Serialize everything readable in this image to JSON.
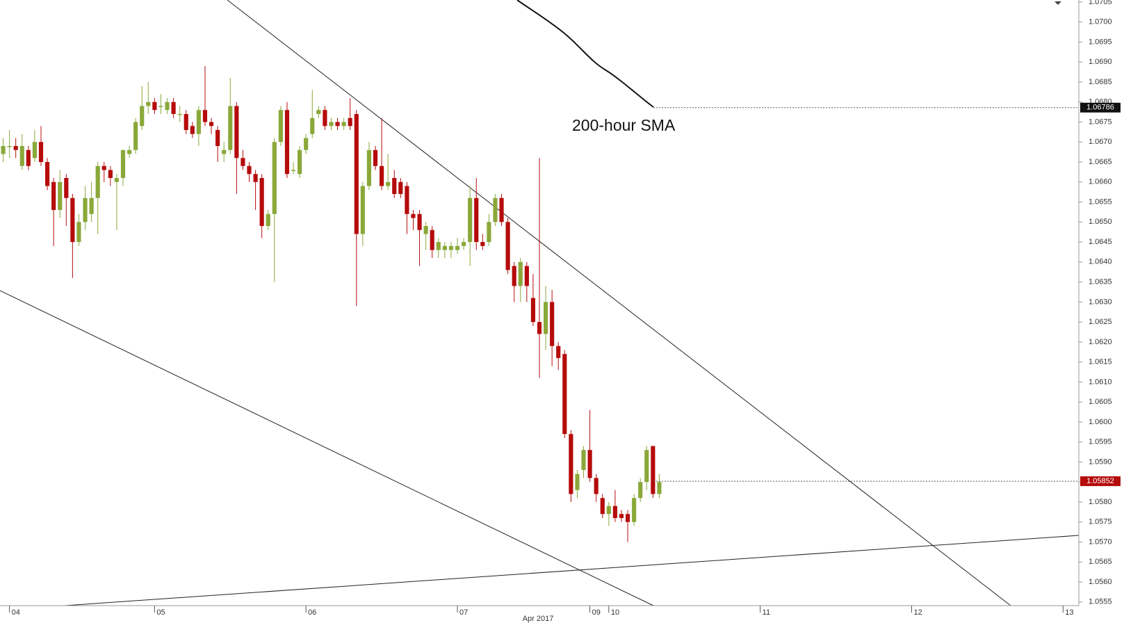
{
  "chart_data": {
    "type": "candlestick",
    "annotations": [
      {
        "text": "200-hour SMA",
        "value": 1.06786
      }
    ],
    "last_price": 1.05852,
    "x_label": "Apr 2017",
    "up_color": "#8aa83a",
    "down_color": "#b50b0b",
    "open": [
      1.0667,
      1.0669,
      1.0669,
      1.0664,
      1.0668,
      1.0666,
      1.067,
      1.0665,
      1.066,
      1.0653,
      1.0661,
      1.0656,
      1.0645,
      1.065,
      1.0652,
      1.0656,
      1.0664,
      1.0663,
      1.066,
      1.0661,
      1.0667,
      1.0668,
      1.0674,
      1.0679,
      1.068,
      1.0679,
      1.0678,
      1.068,
      1.0677,
      1.0677,
      1.0674,
      1.0672,
      1.0678,
      1.0675,
      1.0673,
      1.0667,
      1.0668,
      1.0679,
      1.0666,
      1.0664,
      1.0662,
      1.0661,
      1.0649,
      1.0652,
      1.067,
      1.0678,
      1.0663,
      1.0662,
      1.0668,
      1.0672,
      1.0677,
      1.0678,
      1.0674,
      1.0675,
      1.0674,
      1.0676,
      1.0677,
      1.0647,
      1.0659,
      1.0668,
      1.0664,
      1.0659,
      1.0661,
      1.066,
      1.0659,
      1.0652,
      1.0652,
      1.0647,
      1.0648,
      1.0643,
      1.0643,
      1.0643,
      1.0643,
      1.0644,
      1.0645,
      1.0656,
      1.0645,
      1.0645,
      1.065,
      1.0656,
      1.065,
      1.0639,
      1.0634,
      1.0639,
      1.0631,
      1.0625,
      1.0622,
      1.063,
      1.0619,
      1.0617,
      1.0597,
      1.0583,
      1.0588,
      1.0593,
      1.0586,
      1.0581,
      1.0577,
      1.0579,
      1.0577,
      1.0577,
      1.0575,
      1.0581,
      1.0585,
      1.0594,
      1.0582
    ],
    "high": [
      1.0671,
      1.0673,
      1.0671,
      1.0672,
      1.0669,
      1.0673,
      1.0674,
      1.0666,
      1.0661,
      1.0663,
      1.0662,
      1.0657,
      1.0652,
      1.0659,
      1.066,
      1.0665,
      1.0665,
      1.0664,
      1.0662,
      1.0668,
      1.0669,
      1.0676,
      1.0684,
      1.0685,
      1.0681,
      1.0682,
      1.0681,
      1.0681,
      1.0679,
      1.0678,
      1.0675,
      1.0679,
      1.0689,
      1.0676,
      1.0674,
      1.067,
      1.0686,
      1.068,
      1.0668,
      1.0665,
      1.0663,
      1.0662,
      1.0653,
      1.0671,
      1.0679,
      1.068,
      1.0665,
      1.0669,
      1.0672,
      1.0683,
      1.0679,
      1.0679,
      1.0676,
      1.0676,
      1.0676,
      1.0681,
      1.0678,
      1.066,
      1.067,
      1.0669,
      1.0676,
      1.0667,
      1.0663,
      1.0661,
      1.066,
      1.0653,
      1.0653,
      1.065,
      1.0649,
      1.0646,
      1.0645,
      1.0645,
      1.0646,
      1.0646,
      1.0659,
      1.0661,
      1.0647,
      1.0652,
      1.0657,
      1.0657,
      1.0651,
      1.064,
      1.0641,
      1.064,
      1.0637,
      1.0666,
      1.0634,
      1.0633,
      1.062,
      1.0618,
      1.0598,
      1.0588,
      1.0594,
      1.0603,
      1.0587,
      1.0582,
      1.058,
      1.0583,
      1.0578,
      1.0578,
      1.0582,
      1.0586,
      1.0594,
      1.0594,
      1.0587
    ],
    "low": [
      1.0665,
      1.0666,
      1.0666,
      1.0663,
      1.0663,
      1.0665,
      1.0664,
      1.0658,
      1.0644,
      1.0651,
      1.0649,
      1.0636,
      1.0644,
      1.0648,
      1.065,
      1.0647,
      1.066,
      1.0659,
      1.0648,
      1.0659,
      1.0666,
      1.0667,
      1.0673,
      1.0677,
      1.0677,
      1.0677,
      1.0677,
      1.0676,
      1.0675,
      1.0672,
      1.0671,
      1.0669,
      1.0674,
      1.0672,
      1.0665,
      1.0665,
      1.0667,
      1.0657,
      1.0663,
      1.066,
      1.0653,
      1.0646,
      1.0648,
      1.0635,
      1.0669,
      1.0661,
      1.0662,
      1.0661,
      1.0667,
      1.0671,
      1.0676,
      1.0673,
      1.0673,
      1.0673,
      1.0673,
      1.0673,
      1.0629,
      1.0644,
      1.0658,
      1.0663,
      1.0658,
      1.0658,
      1.0656,
      1.0656,
      1.0647,
      1.0648,
      1.0639,
      1.0643,
      1.0641,
      1.0641,
      1.0641,
      1.0641,
      1.0642,
      1.0643,
      1.0639,
      1.0643,
      1.0643,
      1.0644,
      1.0649,
      1.0649,
      1.0637,
      1.063,
      1.063,
      1.063,
      1.0624,
      1.0611,
      1.0618,
      1.0614,
      1.0613,
      1.0596,
      1.058,
      1.0581,
      1.0586,
      1.0585,
      1.058,
      1.0576,
      1.0574,
      1.0575,
      1.0575,
      1.057,
      1.0574,
      1.058,
      1.0583,
      1.0581,
      1.0581
    ],
    "close": [
      1.0669,
      1.0669,
      1.0668,
      1.0669,
      1.0664,
      1.067,
      1.0665,
      1.0659,
      1.0653,
      1.066,
      1.0656,
      1.0645,
      1.065,
      1.0656,
      1.0656,
      1.0664,
      1.0663,
      1.0661,
      1.0661,
      1.0668,
      1.0668,
      1.0675,
      1.0679,
      1.068,
      1.0678,
      1.0679,
      1.068,
      1.0677,
      1.0677,
      1.0673,
      1.0672,
      1.0678,
      1.0675,
      1.0674,
      1.0669,
      1.0668,
      1.0679,
      1.0666,
      1.0664,
      1.0662,
      1.066,
      1.0649,
      1.0652,
      1.067,
      1.0678,
      1.0662,
      1.0663,
      1.0668,
      1.0671,
      1.0676,
      1.0678,
      1.0674,
      1.0675,
      1.0674,
      1.0675,
      1.0674,
      1.0647,
      1.0659,
      1.0668,
      1.0664,
      1.0659,
      1.066,
      1.0657,
      1.0657,
      1.0652,
      1.0651,
      1.0648,
      1.0649,
      1.0643,
      1.0645,
      1.0644,
      1.0644,
      1.0644,
      1.0645,
      1.0656,
      1.0645,
      1.0644,
      1.065,
      1.0656,
      1.065,
      1.0638,
      1.0634,
      1.064,
      1.0634,
      1.0625,
      1.0622,
      1.063,
      1.0619,
      1.0616,
      1.0597,
      1.0582,
      1.0587,
      1.0593,
      1.0586,
      1.0582,
      1.0577,
      1.0579,
      1.0576,
      1.0576,
      1.0575,
      1.0581,
      1.0585,
      1.0593,
      1.0582,
      1.0585
    ],
    "xlim": [
      -0.5,
      170.5
    ],
    "xticks": [
      {
        "value": 1,
        "label": "04"
      },
      {
        "value": 24,
        "label": "05"
      },
      {
        "value": 48,
        "label": "06"
      },
      {
        "value": 72,
        "label": "07"
      },
      {
        "value": 93,
        "label": "09"
      },
      {
        "value": 96,
        "label": "10"
      },
      {
        "value": 120,
        "label": "11"
      },
      {
        "value": 144,
        "label": "12"
      },
      {
        "value": 168,
        "label": "13"
      }
    ],
    "ylim": [
      1.05541,
      1.07055
    ],
    "yticks": [
      1.0555,
      {
        "value": 1.056,
        "label": "1.0560"
      },
      1.0565,
      {
        "value": 1.057,
        "label": "1.0570"
      },
      1.0575,
      {
        "value": 1.058,
        "label": "1.0580"
      },
      1.0585,
      {
        "value": 1.059,
        "label": "1.0590"
      },
      1.0595,
      {
        "value": 1.06,
        "label": "1.0600"
      },
      1.0605,
      {
        "value": 1.061,
        "label": "1.0610"
      },
      1.0615,
      {
        "value": 1.062,
        "label": "1.0620"
      },
      1.0625,
      {
        "value": 1.063,
        "label": "1.0630"
      },
      1.0635,
      {
        "value": 1.064,
        "label": "1.0640"
      },
      1.0645,
      {
        "value": 1.065,
        "label": "1.0650"
      },
      1.0655,
      {
        "value": 1.066,
        "label": "1.0660"
      },
      1.0665,
      {
        "value": 1.067,
        "label": "1.0670"
      },
      1.0675,
      {
        "value": 1.068,
        "label": "1.0680"
      },
      1.0685,
      {
        "value": 1.069,
        "label": "1.0690"
      },
      1.0695,
      {
        "value": 1.07,
        "label": "1.0700"
      },
      1.0705
    ]
  }
}
